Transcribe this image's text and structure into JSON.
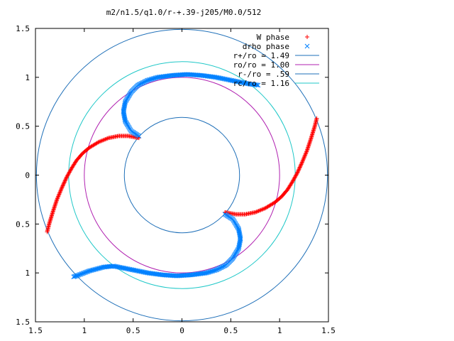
{
  "chart_data": {
    "type": "scatter",
    "title": "m2/n1.5/q1.0/r-+.39-j205/M0.0/512",
    "xlabel": "",
    "ylabel": "",
    "xlim": [
      -1.5,
      1.5
    ],
    "ylim": [
      -1.5,
      1.5
    ],
    "x_ticks": [
      -1.5,
      -1,
      -0.5,
      0,
      0.5,
      1,
      1.5
    ],
    "y_ticks": [
      -1.5,
      -1,
      -0.5,
      0,
      0.5,
      1,
      1.5
    ],
    "x_tick_labels": [
      "1.5",
      "1",
      "0.5",
      "0",
      "0.5",
      "1",
      "1.5"
    ],
    "y_tick_labels": [
      "1.5",
      "1",
      "0.5",
      "0",
      "0.5",
      "1",
      "1.5"
    ],
    "grid": false,
    "legend_position": "top-right",
    "series": [
      {
        "name": "W phase",
        "marker": "plus",
        "color": "#ff0000",
        "arms": [
          [
            [
              -0.44,
              0.38
            ],
            [
              -0.55,
              0.4
            ],
            [
              -0.65,
              0.4
            ],
            [
              -0.75,
              0.38
            ],
            [
              -0.85,
              0.34
            ],
            [
              -0.95,
              0.28
            ],
            [
              -1.02,
              0.22
            ],
            [
              -1.08,
              0.15
            ],
            [
              -1.13,
              0.07
            ],
            [
              -1.18,
              -0.02
            ],
            [
              -1.23,
              -0.13
            ],
            [
              -1.28,
              -0.25
            ],
            [
              -1.32,
              -0.37
            ],
            [
              -1.36,
              -0.5
            ],
            [
              -1.38,
              -0.58
            ]
          ],
          [
            [
              0.44,
              -0.38
            ],
            [
              0.55,
              -0.4
            ],
            [
              0.65,
              -0.4
            ],
            [
              0.75,
              -0.38
            ],
            [
              0.85,
              -0.34
            ],
            [
              0.95,
              -0.28
            ],
            [
              1.02,
              -0.22
            ],
            [
              1.08,
              -0.15
            ],
            [
              1.13,
              -0.07
            ],
            [
              1.18,
              0.02
            ],
            [
              1.23,
              0.13
            ],
            [
              1.28,
              0.25
            ],
            [
              1.32,
              0.37
            ],
            [
              1.36,
              0.5
            ],
            [
              1.38,
              0.58
            ]
          ]
        ]
      },
      {
        "name": "drho phase",
        "marker": "cross",
        "color": "#0080ff",
        "arms": [
          [
            [
              -0.44,
              0.4
            ],
            [
              -0.52,
              0.45
            ],
            [
              -0.58,
              0.55
            ],
            [
              -0.6,
              0.65
            ],
            [
              -0.58,
              0.75
            ],
            [
              -0.52,
              0.85
            ],
            [
              -0.45,
              0.92
            ],
            [
              -0.35,
              0.97
            ],
            [
              -0.25,
              1.0
            ],
            [
              -0.1,
              1.02
            ],
            [
              0.05,
              1.03
            ],
            [
              0.2,
              1.02
            ],
            [
              0.35,
              1.0
            ],
            [
              0.5,
              0.97
            ],
            [
              0.6,
              0.95
            ],
            [
              0.7,
              0.93
            ],
            [
              0.78,
              0.92
            ]
          ],
          [
            [
              0.44,
              -0.4
            ],
            [
              0.52,
              -0.45
            ],
            [
              0.58,
              -0.55
            ],
            [
              0.6,
              -0.65
            ],
            [
              0.58,
              -0.75
            ],
            [
              0.52,
              -0.85
            ],
            [
              0.45,
              -0.92
            ],
            [
              0.35,
              -0.97
            ],
            [
              0.25,
              -1.0
            ],
            [
              0.1,
              -1.02
            ],
            [
              -0.05,
              -1.03
            ],
            [
              -0.2,
              -1.02
            ],
            [
              -0.35,
              -1.0
            ],
            [
              -0.5,
              -0.97
            ],
            [
              -0.6,
              -0.95
            ],
            [
              -0.7,
              -0.93
            ],
            [
              -0.8,
              -0.94
            ],
            [
              -0.95,
              -0.98
            ],
            [
              -1.08,
              -1.03
            ],
            [
              -1.11,
              -1.04
            ]
          ]
        ]
      },
      {
        "name": "r+/ro = 1.49",
        "type": "circle",
        "radius": 1.49,
        "color": "#1e6fb8"
      },
      {
        "name": "ro/ro = 1.00",
        "type": "circle",
        "radius": 1.0,
        "color": "#b020b0"
      },
      {
        "name": "r-/ro = .59",
        "type": "circle",
        "radius": 0.59,
        "color": "#1e6fb8"
      },
      {
        "name": "rc/ro = 1.16",
        "type": "circle",
        "radius": 1.16,
        "color": "#20c8c8"
      }
    ]
  }
}
